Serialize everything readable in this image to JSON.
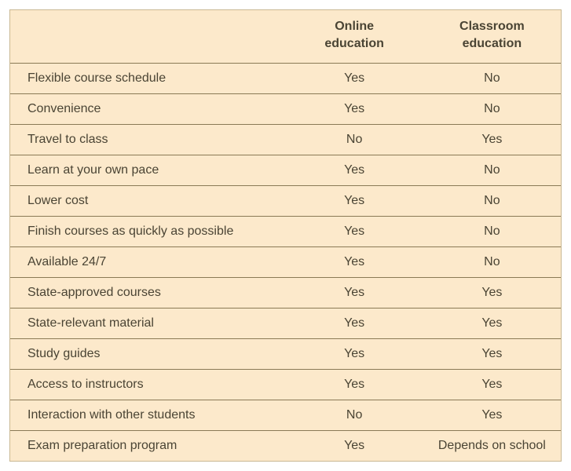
{
  "table": {
    "background_color": "#fce9cb",
    "border_color": "#8a7a56",
    "text_color": "#4a4434",
    "font_size": 16,
    "columns": [
      {
        "label": "",
        "align": "left",
        "width_pct": 50
      },
      {
        "label": "Online education",
        "align": "center",
        "width_pct": 25
      },
      {
        "label": "Classroom education",
        "align": "center",
        "width_pct": 25
      }
    ],
    "header_font_weight": 700,
    "rows": [
      {
        "label": "Flexible course schedule",
        "online": "Yes",
        "classroom": "No"
      },
      {
        "label": "Convenience",
        "online": "Yes",
        "classroom": "No"
      },
      {
        "label": "Travel to class",
        "online": "No",
        "classroom": "Yes"
      },
      {
        "label": "Learn at your own pace",
        "online": "Yes",
        "classroom": "No"
      },
      {
        "label": "Lower cost",
        "online": "Yes",
        "classroom": "No"
      },
      {
        "label": "Finish courses as quickly as possible",
        "online": "Yes",
        "classroom": "No"
      },
      {
        "label": "Available 24/7",
        "online": "Yes",
        "classroom": "No"
      },
      {
        "label": "State-approved courses",
        "online": "Yes",
        "classroom": "Yes"
      },
      {
        "label": "State-relevant material",
        "online": "Yes",
        "classroom": "Yes"
      },
      {
        "label": "Study guides",
        "online": "Yes",
        "classroom": "Yes"
      },
      {
        "label": "Access to instructors",
        "online": "Yes",
        "classroom": "Yes"
      },
      {
        "label": "Interaction with other students",
        "online": "No",
        "classroom": "Yes"
      },
      {
        "label": "Exam preparation program",
        "online": "Yes",
        "classroom": "Depends on school"
      }
    ]
  }
}
